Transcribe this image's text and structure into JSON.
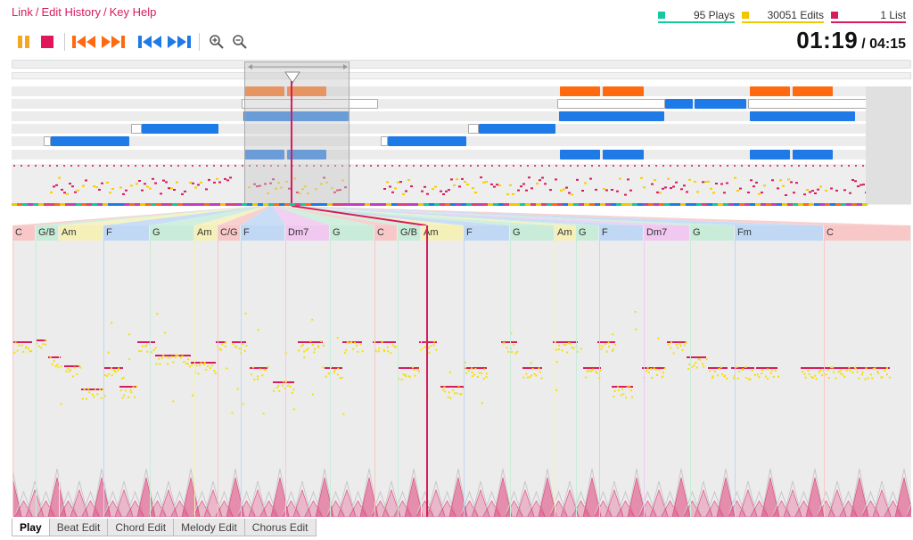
{
  "nav": {
    "link": "Link",
    "edit_history": "Edit History",
    "key_help": "Key Help"
  },
  "stats": {
    "plays": "95 Plays",
    "plays_color": "#14c8a0",
    "edits": "30051 Edits",
    "edits_color": "#f0c800",
    "list": "1 List",
    "list_color": "#d81b60"
  },
  "time": {
    "current": "01:19",
    "total": "/ 04:15"
  },
  "toolbar": {
    "buttons": [
      {
        "name": "pause-button",
        "icon": "pause-icon",
        "color": "#f5a623"
      },
      {
        "name": "stop-button",
        "icon": "stop-icon",
        "color": "#e0185a"
      },
      {
        "name": "chorus-prev-button",
        "icon": "rewind-icon",
        "color": "#ff6a10"
      },
      {
        "name": "chorus-next-button",
        "icon": "fast-forward-icon",
        "color": "#ff6a10"
      },
      {
        "name": "section-prev-button",
        "icon": "rewind-icon",
        "color": "#1e7ae6"
      },
      {
        "name": "section-next-button",
        "icon": "fast-forward-icon",
        "color": "#1e7ae6"
      },
      {
        "name": "zoom-in-button",
        "icon": "zoom-in-icon",
        "color": "#555555"
      },
      {
        "name": "zoom-out-button",
        "icon": "zoom-out-icon",
        "color": "#555555"
      }
    ]
  },
  "chords": [
    {
      "label": "C",
      "color": "#f8c8c8"
    },
    {
      "label": "G/B",
      "color": "#c8ecd8"
    },
    {
      "label": "Am",
      "color": "#f4f0b8"
    },
    {
      "label": "F",
      "color": "#c0d8f4"
    },
    {
      "label": "G",
      "color": "#c8ecd8"
    },
    {
      "label": "Am",
      "color": "#f4f0b8"
    },
    {
      "label": "C/G",
      "color": "#f8c8c8"
    },
    {
      "label": "F",
      "color": "#c0d8f4"
    },
    {
      "label": "Dm7",
      "color": "#f0c8f0"
    },
    {
      "label": "G",
      "color": "#c8ecd8"
    },
    {
      "label": "C",
      "color": "#f8c8c8"
    },
    {
      "label": "G/B",
      "color": "#c8ecd8"
    },
    {
      "label": "Am",
      "color": "#f4f0b8"
    },
    {
      "label": "F",
      "color": "#c0d8f4"
    },
    {
      "label": "G",
      "color": "#c8ecd8"
    },
    {
      "label": "Am",
      "color": "#f4f0b8"
    },
    {
      "label": "G",
      "color": "#c8ecd8"
    },
    {
      "label": "F",
      "color": "#c0d8f4"
    },
    {
      "label": "Dm7",
      "color": "#f0c8f0"
    },
    {
      "label": "G",
      "color": "#c8ecd8"
    },
    {
      "label": "Fm",
      "color": "#c0d8f4"
    },
    {
      "label": "C",
      "color": "#f8c8c8"
    }
  ],
  "tabs": [
    {
      "label": "Play",
      "active": true
    },
    {
      "label": "Beat Edit",
      "active": false
    },
    {
      "label": "Chord Edit",
      "active": false
    },
    {
      "label": "Melody Edit",
      "active": false
    },
    {
      "label": "Chorus Edit",
      "active": false
    }
  ],
  "colors": {
    "chorus": "#ff6a10",
    "section": "#1e7ae6",
    "melody_note": "#d81b60",
    "pitch_trace": "#f5e000",
    "playhead": "#d81b60",
    "beat": "#e0407a"
  }
}
